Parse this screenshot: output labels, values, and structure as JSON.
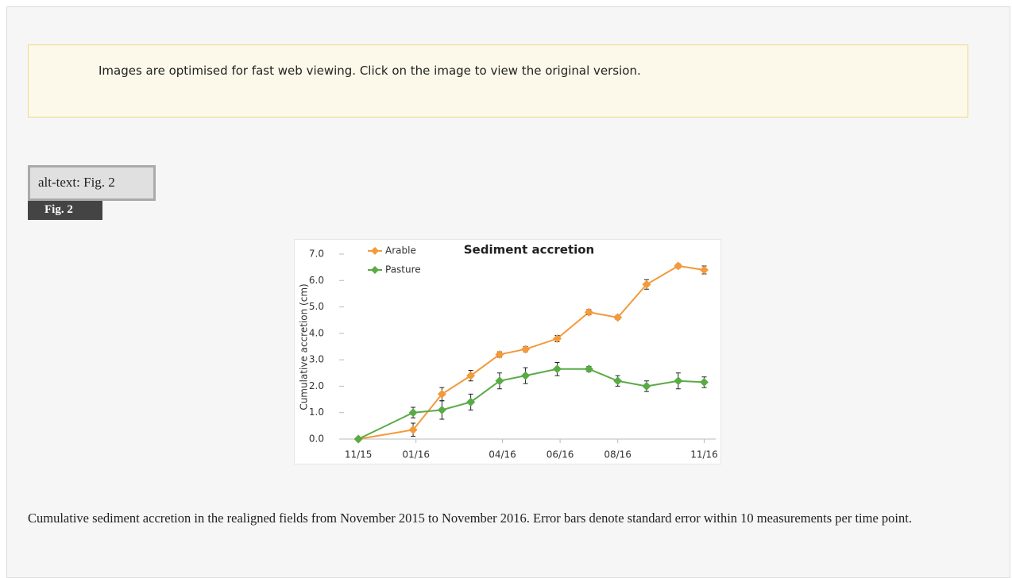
{
  "notice": {
    "text": "Images are optimised for fast web viewing. Click on the image to view the original version."
  },
  "alt_text": "alt-text: Fig. 2",
  "figure": {
    "label": "Fig. 2"
  },
  "chart_data": {
    "type": "line",
    "title": "Sediment accretion",
    "y_label": "Cumulative accretion (cm)",
    "x": [
      0,
      1.9,
      2.9,
      3.9,
      4.9,
      5.8,
      6.9,
      8,
      9,
      10,
      11.1,
      12
    ],
    "xlim": [
      -0.5,
      12.4
    ],
    "xticks": [
      {
        "value": 0,
        "label": "11/15"
      },
      {
        "value": 2,
        "label": "01/16"
      },
      {
        "value": 5,
        "label": "04/16"
      },
      {
        "value": 7,
        "label": "06/16"
      },
      {
        "value": 9,
        "label": "08/16"
      },
      {
        "value": 12,
        "label": "11/16"
      }
    ],
    "ylim": [
      0,
      7
    ],
    "yticks": [
      {
        "value": 0,
        "label": "0.0"
      },
      {
        "value": 1,
        "label": "1.0"
      },
      {
        "value": 2,
        "label": "2.0"
      },
      {
        "value": 3,
        "label": "3.0"
      },
      {
        "value": 4,
        "label": "4.0"
      },
      {
        "value": 5,
        "label": "5.0"
      },
      {
        "value": 6,
        "label": "6.0"
      },
      {
        "value": 7,
        "label": "7.0"
      }
    ],
    "legend": "top-left",
    "series": [
      {
        "name": "Arable",
        "color": "#f39a3a",
        "values": [
          0,
          0.35,
          1.7,
          2.4,
          3.2,
          3.4,
          3.8,
          4.8,
          4.6,
          5.85,
          6.55,
          6.4
        ],
        "errors": [
          0,
          0.25,
          0.25,
          0.2,
          0.1,
          0.1,
          0.12,
          0.1,
          0.08,
          0.18,
          0.08,
          0.15
        ]
      },
      {
        "name": "Pasture",
        "color": "#5aaa46",
        "values": [
          0,
          1.0,
          1.1,
          1.4,
          2.2,
          2.4,
          2.65,
          2.65,
          2.2,
          2.0,
          2.2,
          2.15
        ],
        "errors": [
          0,
          0.2,
          0.35,
          0.3,
          0.3,
          0.3,
          0.25,
          0.1,
          0.2,
          0.2,
          0.3,
          0.2
        ]
      }
    ]
  },
  "caption": {
    "text": "Cumulative sediment accretion in the realigned fields from November 2015 to November 2016. Error bars denote standard error within 10 measurements per time point."
  }
}
